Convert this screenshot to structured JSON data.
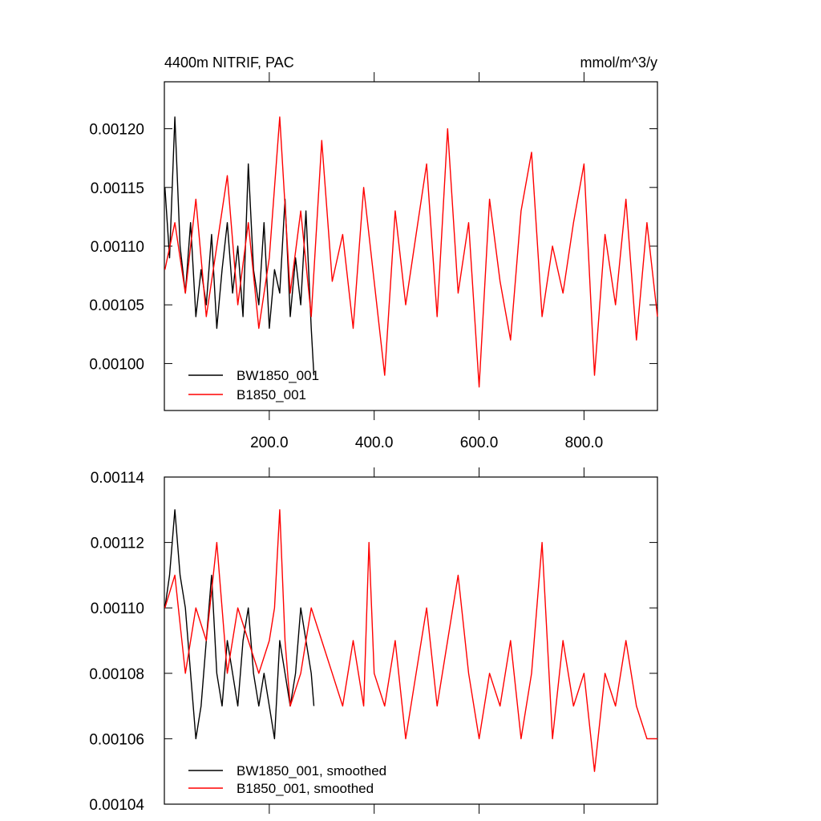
{
  "chart_data": [
    {
      "type": "line",
      "title_left": "4400m NITRIF, PAC",
      "title_right": "mmol/m^3/y",
      "xlim": [
        0,
        940
      ],
      "ylim": [
        0.00096,
        0.00124
      ],
      "xticks": [
        200,
        400,
        600,
        800
      ],
      "xtick_labels": [
        "200.0",
        "400.0",
        "600.0",
        "800.0"
      ],
      "yticks": [
        0.001,
        0.00105,
        0.0011,
        0.00115,
        0.0012
      ],
      "ytick_labels": [
        "0.00100",
        "0.00105",
        "0.00110",
        "0.00115",
        "0.00120"
      ],
      "legend_position": "bottom-left",
      "series": [
        {
          "name": "BW1850_001",
          "color": "#000000",
          "x": [
            1,
            10,
            20,
            30,
            40,
            50,
            60,
            70,
            80,
            90,
            100,
            110,
            120,
            130,
            140,
            150,
            160,
            170,
            180,
            190,
            200,
            210,
            220,
            230,
            240,
            250,
            260,
            270,
            280,
            285
          ],
          "values": [
            0.00115,
            0.00109,
            0.00121,
            0.0011,
            0.00106,
            0.00112,
            0.00104,
            0.00108,
            0.00105,
            0.00111,
            0.00103,
            0.00108,
            0.00112,
            0.00106,
            0.0011,
            0.00104,
            0.00117,
            0.00108,
            0.00105,
            0.00112,
            0.00103,
            0.00108,
            0.00106,
            0.00114,
            0.00104,
            0.00109,
            0.00105,
            0.00113,
            0.00103,
            0.00099
          ]
        },
        {
          "name": "B1850_001",
          "color": "#ff0000",
          "x": [
            1,
            20,
            40,
            60,
            80,
            100,
            120,
            140,
            160,
            180,
            200,
            220,
            240,
            260,
            280,
            300,
            320,
            340,
            360,
            380,
            400,
            420,
            440,
            460,
            480,
            500,
            520,
            540,
            560,
            580,
            600,
            620,
            640,
            660,
            680,
            700,
            720,
            740,
            760,
            780,
            800,
            820,
            840,
            860,
            880,
            900,
            920,
            940
          ],
          "values": [
            0.00108,
            0.00112,
            0.00106,
            0.00114,
            0.00104,
            0.0011,
            0.00116,
            0.00105,
            0.00112,
            0.00103,
            0.00109,
            0.00121,
            0.00106,
            0.00113,
            0.00104,
            0.00119,
            0.00107,
            0.00111,
            0.00103,
            0.00115,
            0.00107,
            0.00099,
            0.00113,
            0.00105,
            0.00111,
            0.00117,
            0.00104,
            0.0012,
            0.00106,
            0.00112,
            0.00098,
            0.00114,
            0.00107,
            0.00102,
            0.00113,
            0.00118,
            0.00104,
            0.0011,
            0.00106,
            0.00112,
            0.00117,
            0.00099,
            0.00111,
            0.00105,
            0.00114,
            0.00102,
            0.00112,
            0.00104
          ]
        }
      ]
    },
    {
      "type": "line",
      "xlim": [
        0,
        940
      ],
      "ylim": [
        0.00104,
        0.00114
      ],
      "xticks": [
        200,
        400,
        600,
        800
      ],
      "yticks": [
        0.00104,
        0.00106,
        0.00108,
        0.0011,
        0.00112,
        0.00114
      ],
      "ytick_labels": [
        "0.00104",
        "0.00106",
        "0.00108",
        "0.00110",
        "0.00112",
        "0.00114"
      ],
      "legend_position": "bottom-left",
      "series": [
        {
          "name": "BW1850_001, smoothed",
          "color": "#000000",
          "x": [
            1,
            10,
            20,
            30,
            40,
            50,
            60,
            70,
            80,
            90,
            100,
            110,
            120,
            130,
            140,
            150,
            160,
            170,
            180,
            190,
            200,
            210,
            220,
            230,
            240,
            250,
            260,
            270,
            280,
            285
          ],
          "values": [
            0.0011,
            0.00111,
            0.00113,
            0.00111,
            0.0011,
            0.00108,
            0.00106,
            0.00107,
            0.00109,
            0.00111,
            0.00108,
            0.00107,
            0.00109,
            0.00108,
            0.00107,
            0.00109,
            0.0011,
            0.00108,
            0.00107,
            0.00108,
            0.00107,
            0.00106,
            0.00109,
            0.00108,
            0.00107,
            0.00108,
            0.0011,
            0.00109,
            0.00108,
            0.00107
          ]
        },
        {
          "name": "B1850_001, smoothed",
          "color": "#ff0000",
          "x": [
            1,
            20,
            40,
            60,
            80,
            100,
            120,
            140,
            160,
            180,
            200,
            210,
            220,
            230,
            240,
            260,
            280,
            300,
            320,
            340,
            360,
            380,
            390,
            400,
            420,
            440,
            460,
            480,
            500,
            520,
            540,
            560,
            580,
            600,
            620,
            640,
            660,
            680,
            700,
            720,
            740,
            760,
            780,
            800,
            820,
            840,
            860,
            880,
            900,
            920,
            940
          ],
          "values": [
            0.0011,
            0.00111,
            0.00108,
            0.0011,
            0.00109,
            0.00112,
            0.00108,
            0.0011,
            0.00109,
            0.00108,
            0.00109,
            0.0011,
            0.00113,
            0.00109,
            0.00107,
            0.00108,
            0.0011,
            0.00109,
            0.00108,
            0.00107,
            0.00109,
            0.00107,
            0.00112,
            0.00108,
            0.00107,
            0.00109,
            0.00106,
            0.00108,
            0.0011,
            0.00107,
            0.00109,
            0.00111,
            0.00108,
            0.00106,
            0.00108,
            0.00107,
            0.00109,
            0.00106,
            0.00108,
            0.00112,
            0.00106,
            0.00109,
            0.00107,
            0.00108,
            0.00105,
            0.00108,
            0.00107,
            0.00109,
            0.00107,
            0.00106,
            0.00106
          ]
        }
      ]
    }
  ]
}
